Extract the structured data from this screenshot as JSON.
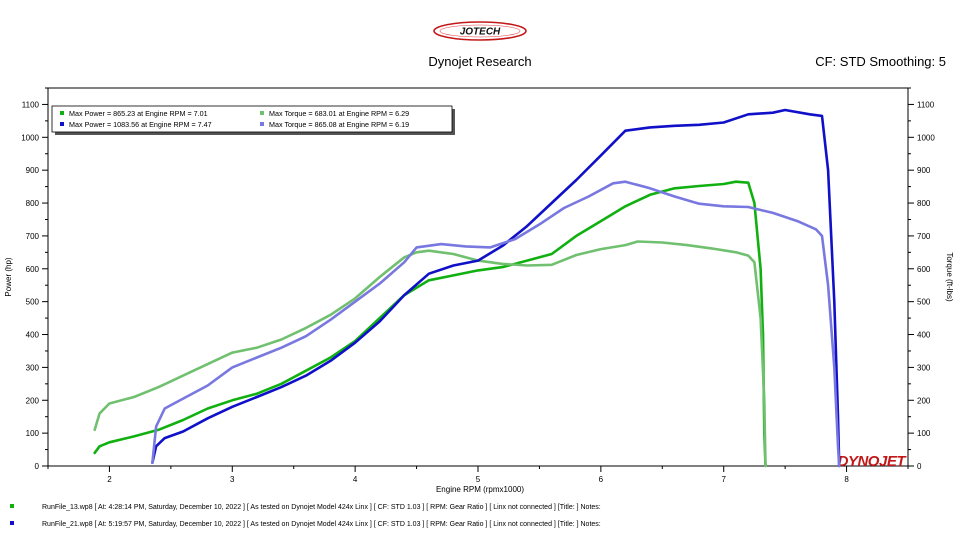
{
  "header": {
    "logo_text": "JOTECH",
    "title": "Dynojet Research",
    "cf_label": "CF: STD Smoothing: 5"
  },
  "footer": {
    "runs": [
      {
        "text": "RunFile_13.wp8 [ At: 4:28:14 PM, Saturday, December 10, 2022 ] [ As tested on Dynojet Model 424x Linx ] [ CF: STD 1.03 ] [ RPM: Gear Ratio ] [ Linx not connected ] [Title: ] Notes:",
        "color": "#10b010"
      },
      {
        "text": "RunFile_21.wp8 [ At: 5:19:57 PM, Saturday, December 10, 2022 ] [ As tested on Dynojet Model 424x Linx ] [ CF: STD 1.03 ] [ RPM: Gear Ratio ] [ Linx not connected ] [Title: ] Notes:",
        "color": "#1010c8"
      }
    ]
  },
  "chart_data": {
    "type": "line",
    "xlabel": "Engine RPM (rpmx1000)",
    "ylabel_left": "Power (hp)",
    "ylabel_right": "Torque (ft-lbs)",
    "xlim": [
      1.5,
      8.5
    ],
    "ylim": [
      0,
      1150
    ],
    "xticks": [
      2,
      3,
      4,
      5,
      6,
      7,
      8
    ],
    "yticks": [
      0,
      100,
      200,
      300,
      400,
      500,
      600,
      700,
      800,
      900,
      1000,
      1100
    ],
    "grid": false,
    "legend_position": "top-left",
    "watermark": "DYNOJET",
    "legend": [
      {
        "text": "Max Power = 865.23 at Engine RPM = 7.01",
        "color": "#10b010"
      },
      {
        "text": "Max Torque = 683.01 at Engine RPM = 6.29",
        "color": "#70c070"
      },
      {
        "text": "Max Power = 1083.56 at Engine RPM = 7.47",
        "color": "#1010c8"
      },
      {
        "text": "Max Torque = 865.08 at Engine RPM = 6.19",
        "color": "#7878e0"
      }
    ],
    "series": [
      {
        "color": "#10b010",
        "width": 2.6,
        "points": [
          [
            1.88,
            40
          ],
          [
            1.92,
            60
          ],
          [
            2,
            72
          ],
          [
            2.2,
            90
          ],
          [
            2.4,
            110
          ],
          [
            2.6,
            140
          ],
          [
            2.8,
            175
          ],
          [
            3,
            200
          ],
          [
            3.2,
            220
          ],
          [
            3.4,
            250
          ],
          [
            3.6,
            290
          ],
          [
            3.8,
            330
          ],
          [
            4,
            380
          ],
          [
            4.2,
            450
          ],
          [
            4.4,
            520
          ],
          [
            4.6,
            565
          ],
          [
            4.8,
            580
          ],
          [
            5,
            595
          ],
          [
            5.2,
            605
          ],
          [
            5.4,
            625
          ],
          [
            5.6,
            645
          ],
          [
            5.8,
            700
          ],
          [
            6,
            745
          ],
          [
            6.2,
            790
          ],
          [
            6.4,
            825
          ],
          [
            6.6,
            845
          ],
          [
            6.8,
            852
          ],
          [
            7.0,
            858
          ],
          [
            7.1,
            865
          ],
          [
            7.2,
            862
          ],
          [
            7.25,
            800
          ],
          [
            7.3,
            600
          ],
          [
            7.32,
            400
          ],
          [
            7.33,
            100
          ],
          [
            7.34,
            0
          ]
        ]
      },
      {
        "color": "#70c070",
        "width": 2.6,
        "points": [
          [
            1.88,
            110
          ],
          [
            1.92,
            160
          ],
          [
            2,
            190
          ],
          [
            2.2,
            210
          ],
          [
            2.4,
            240
          ],
          [
            2.6,
            275
          ],
          [
            2.8,
            310
          ],
          [
            3,
            345
          ],
          [
            3.2,
            360
          ],
          [
            3.4,
            385
          ],
          [
            3.6,
            420
          ],
          [
            3.8,
            460
          ],
          [
            4,
            510
          ],
          [
            4.2,
            575
          ],
          [
            4.4,
            635
          ],
          [
            4.5,
            650
          ],
          [
            4.6,
            655
          ],
          [
            4.8,
            645
          ],
          [
            5,
            625
          ],
          [
            5.2,
            615
          ],
          [
            5.4,
            610
          ],
          [
            5.6,
            612
          ],
          [
            5.8,
            642
          ],
          [
            6,
            660
          ],
          [
            6.2,
            672
          ],
          [
            6.3,
            683
          ],
          [
            6.5,
            680
          ],
          [
            6.7,
            672
          ],
          [
            6.9,
            662
          ],
          [
            7.1,
            650
          ],
          [
            7.2,
            640
          ],
          [
            7.25,
            620
          ],
          [
            7.3,
            450
          ],
          [
            7.33,
            200
          ],
          [
            7.34,
            0
          ]
        ]
      },
      {
        "color": "#1010c8",
        "width": 2.6,
        "points": [
          [
            2.35,
            10
          ],
          [
            2.38,
            60
          ],
          [
            2.45,
            85
          ],
          [
            2.6,
            105
          ],
          [
            2.8,
            145
          ],
          [
            3,
            180
          ],
          [
            3.2,
            210
          ],
          [
            3.4,
            240
          ],
          [
            3.6,
            275
          ],
          [
            3.8,
            320
          ],
          [
            4,
            375
          ],
          [
            4.2,
            440
          ],
          [
            4.4,
            520
          ],
          [
            4.6,
            585
          ],
          [
            4.8,
            610
          ],
          [
            5,
            625
          ],
          [
            5.2,
            670
          ],
          [
            5.4,
            730
          ],
          [
            5.6,
            800
          ],
          [
            5.8,
            870
          ],
          [
            6,
            945
          ],
          [
            6.2,
            1020
          ],
          [
            6.4,
            1030
          ],
          [
            6.6,
            1035
          ],
          [
            6.8,
            1038
          ],
          [
            7,
            1045
          ],
          [
            7.2,
            1070
          ],
          [
            7.4,
            1075
          ],
          [
            7.5,
            1083
          ],
          [
            7.7,
            1070
          ],
          [
            7.8,
            1065
          ],
          [
            7.85,
            900
          ],
          [
            7.9,
            500
          ],
          [
            7.93,
            150
          ],
          [
            7.94,
            0
          ]
        ]
      },
      {
        "color": "#7878e0",
        "width": 2.6,
        "points": [
          [
            2.35,
            10
          ],
          [
            2.38,
            120
          ],
          [
            2.45,
            175
          ],
          [
            2.6,
            205
          ],
          [
            2.8,
            245
          ],
          [
            3,
            300
          ],
          [
            3.2,
            330
          ],
          [
            3.4,
            360
          ],
          [
            3.6,
            395
          ],
          [
            3.8,
            445
          ],
          [
            4,
            500
          ],
          [
            4.2,
            555
          ],
          [
            4.4,
            620
          ],
          [
            4.5,
            665
          ],
          [
            4.7,
            675
          ],
          [
            4.9,
            668
          ],
          [
            5.1,
            665
          ],
          [
            5.3,
            690
          ],
          [
            5.5,
            735
          ],
          [
            5.7,
            785
          ],
          [
            5.9,
            820
          ],
          [
            6.1,
            860
          ],
          [
            6.2,
            865
          ],
          [
            6.4,
            845
          ],
          [
            6.6,
            820
          ],
          [
            6.8,
            798
          ],
          [
            7,
            790
          ],
          [
            7.2,
            788
          ],
          [
            7.4,
            770
          ],
          [
            7.6,
            745
          ],
          [
            7.75,
            720
          ],
          [
            7.8,
            700
          ],
          [
            7.85,
            550
          ],
          [
            7.9,
            300
          ],
          [
            7.93,
            60
          ],
          [
            7.94,
            0
          ]
        ]
      }
    ]
  }
}
